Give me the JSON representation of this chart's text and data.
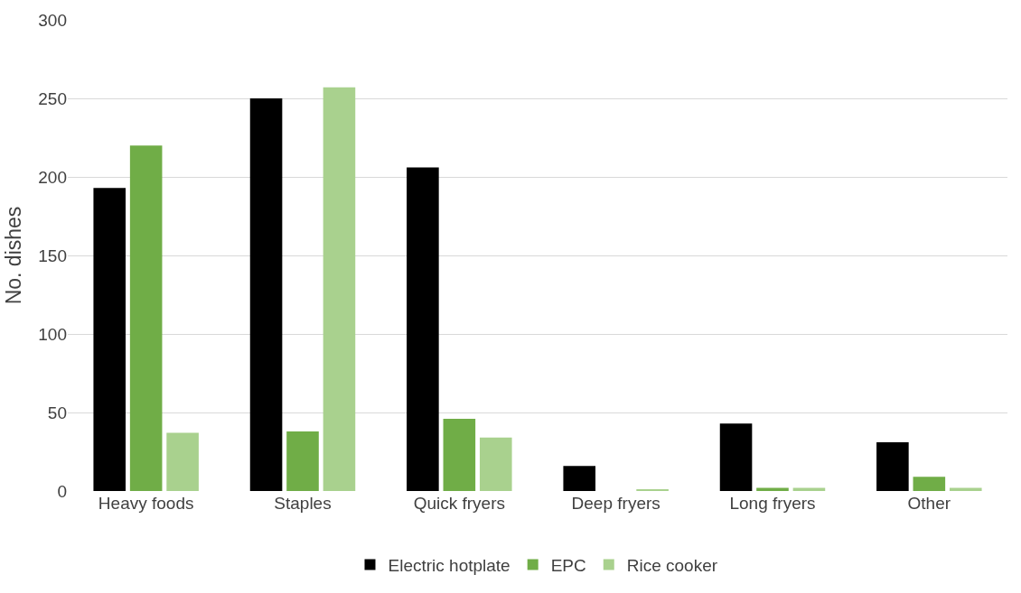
{
  "chart_data": {
    "type": "bar",
    "ylabel": "No. dishes",
    "categories": [
      "Heavy foods",
      "Staples",
      "Quick fryers",
      "Deep fryers",
      "Long fryers",
      "Other"
    ],
    "series": [
      {
        "name": "Electric hotplate",
        "color": "#000000",
        "values": [
          193,
          250,
          206,
          16,
          43,
          31
        ]
      },
      {
        "name": "EPC",
        "color": "#70ad47",
        "values": [
          220,
          38,
          46,
          0,
          2,
          9
        ]
      },
      {
        "name": "Rice cooker",
        "color": "#a9d18e",
        "values": [
          37,
          257,
          34,
          1,
          2,
          2
        ]
      }
    ],
    "ylim": [
      0,
      300
    ],
    "yticks": [
      0,
      50,
      100,
      150,
      200,
      250,
      300
    ],
    "grid": "y",
    "legend": "bottom"
  }
}
